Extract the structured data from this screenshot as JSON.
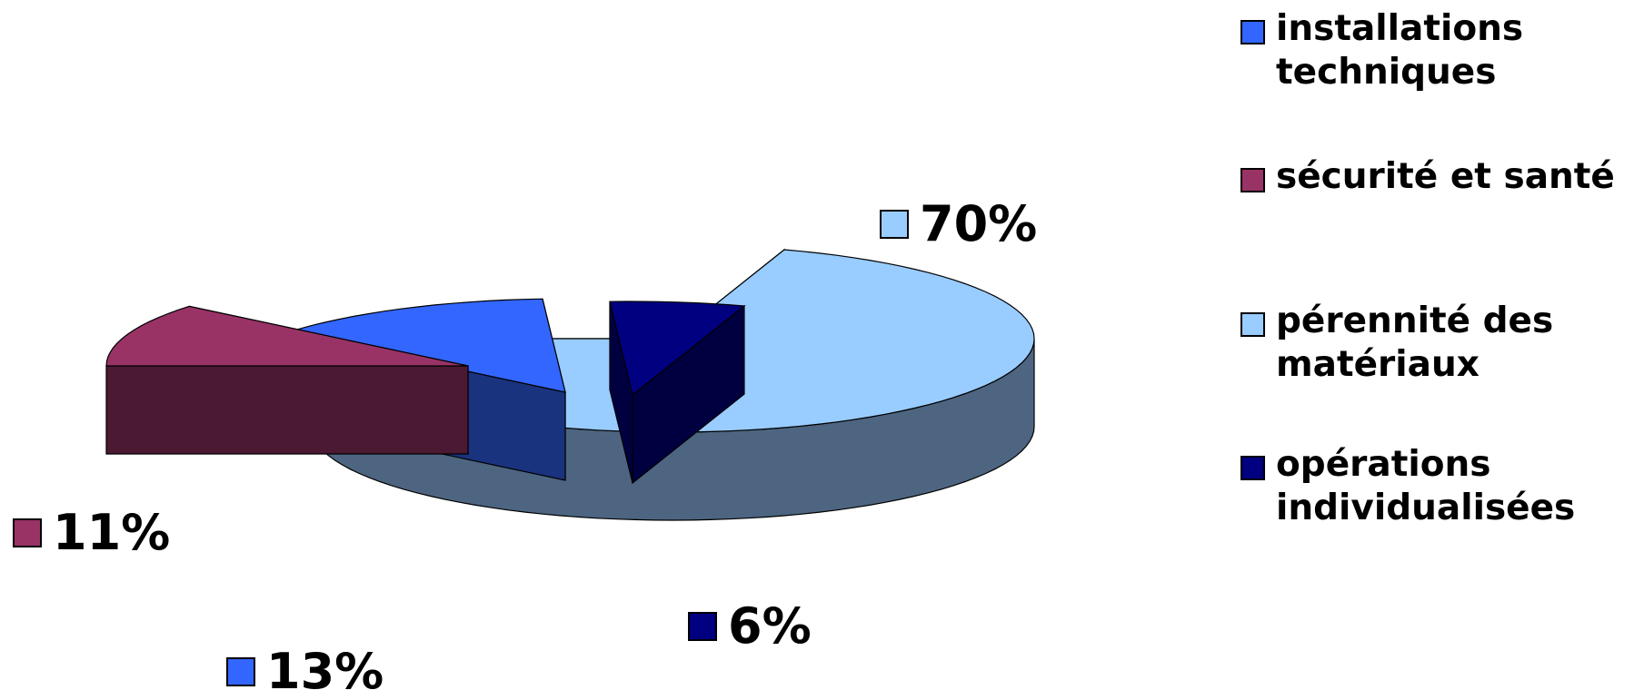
{
  "chart_data": {
    "type": "pie",
    "style": "3d-exploded",
    "title": "",
    "slices": [
      {
        "label": "installations techniques",
        "value": 13,
        "display": "13%",
        "color": "#3366ff",
        "side_color": "#1a337f"
      },
      {
        "label": "sécurité et santé",
        "value": 11,
        "display": "11%",
        "color": "#993366",
        "side_color": "#4c1933"
      },
      {
        "label": "pérennité des matériaux",
        "value": 70,
        "display": "70%",
        "color": "#99ccff",
        "side_color": "#4d6580"
      },
      {
        "label": "opérations individualisées",
        "value": 6,
        "display": "6%",
        "color": "#000080",
        "side_color": "#000040"
      }
    ],
    "legend_position": "top-right"
  }
}
